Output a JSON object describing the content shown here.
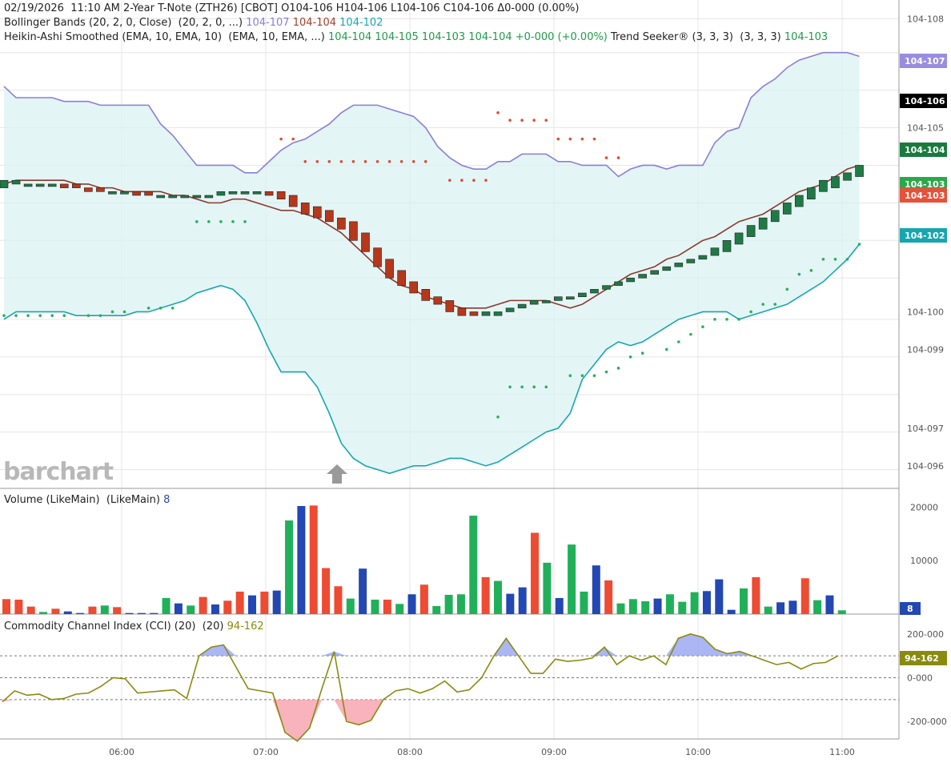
{
  "header": {
    "line1": "02/19/2026  11:10 AM 2-Year T-Note (ZTH26) [CBOT] O104-106 H104-106 L104-106 C104-106 Δ0-000 (0.00%)",
    "bb_label": "Bollinger Bands (20, 2, 0, Close)  (20, 2, 0, ...) ",
    "bb_upper": "104-107",
    "bb_mid": "104-104",
    "bb_lower": "104-102",
    "ha_label": "Heikin-Ashi Smoothed (EMA, 10, EMA, 10)  (EMA, 10, EMA, ...) ",
    "ha_values": "104-104 104-105 104-103 104-104 +0-000 (+0.00%)",
    "ts_label": " Trend Seeker® (3, 3, 3)  (3, 3, 3) ",
    "ts_value": "104-103"
  },
  "volume_panel": {
    "label": "Volume (LikeMain)  (LikeMain) ",
    "value": "8",
    "ticks": [
      "20000",
      "10000"
    ]
  },
  "cci_panel": {
    "label": "Commodity Channel Index (CCI) (20)  (20) ",
    "value": "94-162",
    "ticks": [
      "200-000",
      "0-000",
      "-200-000"
    ]
  },
  "watermark": "barchart",
  "price_ticks": [
    "104-108",
    "104-105",
    "104-100",
    "104-099",
    "104-097",
    "104-096"
  ],
  "price_tags": [
    {
      "label": "104-107",
      "color": "#9a8de0"
    },
    {
      "label": "104-106",
      "color": "#000000"
    },
    {
      "label": "104-104",
      "color": "#1a7a3e"
    },
    {
      "label": "104-103",
      "color": "#2aa84a"
    },
    {
      "label": "104-103",
      "color": "#e8503a"
    },
    {
      "label": "104-102",
      "color": "#17a6b0"
    }
  ],
  "chart_data": {
    "type": "line",
    "x_labels": [
      "06:00",
      "07:00",
      "08:00",
      "09:00",
      "10:00",
      "11:00"
    ],
    "price_panel": {
      "unit": "price (decimal approximations of 104-xxx quotes)",
      "ylim": [
        104.0955,
        104.1085
      ],
      "bb_upper": [
        104.1062,
        104.1059,
        104.1059,
        104.1059,
        104.1059,
        104.1058,
        104.1058,
        104.1058,
        104.1057,
        104.1057,
        104.1057,
        104.1057,
        104.1057,
        104.1052,
        104.1049,
        104.1045,
        104.1041,
        104.1041,
        104.1041,
        104.1041,
        104.1039,
        104.1039,
        104.1042,
        104.1045,
        104.1047,
        104.1048,
        104.105,
        104.1052,
        104.1055,
        104.1057,
        104.1057,
        104.1057,
        104.1056,
        104.1055,
        104.1054,
        104.1051,
        104.1046,
        104.1043,
        104.1041,
        104.104,
        104.104,
        104.1042,
        104.1042,
        104.1044,
        104.1044,
        104.1044,
        104.1042,
        104.1042,
        104.1041,
        104.1041,
        104.1041,
        104.1038,
        104.104,
        104.1041,
        104.1041,
        104.104,
        104.1041,
        104.1041,
        104.1041,
        104.1047,
        104.105,
        104.1051,
        104.1059,
        104.1062,
        104.1064,
        104.1067,
        104.1069,
        104.107,
        104.1071,
        104.1071,
        104.1071,
        104.107
      ],
      "bb_mid": [
        104.1036,
        104.1037,
        104.1037,
        104.1037,
        104.1037,
        104.1037,
        104.1036,
        104.1036,
        104.1035,
        104.1035,
        104.1034,
        104.1034,
        104.1034,
        104.1034,
        104.1033,
        104.1033,
        104.1032,
        104.1031,
        104.1031,
        104.1032,
        104.1032,
        104.1031,
        104.103,
        104.1029,
        104.1029,
        104.1028,
        104.1027,
        104.1025,
        104.1023,
        104.102,
        104.1017,
        104.1014,
        104.1011,
        104.1009,
        104.1008,
        104.1006,
        104.1005,
        104.1004,
        104.1003,
        104.1003,
        104.1003,
        104.1004,
        104.1005,
        104.1005,
        104.1005,
        104.1005,
        104.1004,
        104.1003,
        104.1004,
        104.1006,
        104.1008,
        104.101,
        104.1012,
        104.1013,
        104.1014,
        104.1016,
        104.1017,
        104.1019,
        104.1021,
        104.1022,
        104.1024,
        104.1026,
        104.1027,
        104.1028,
        104.103,
        104.1032,
        104.1034,
        104.1035,
        104.1036,
        104.1038,
        104.104,
        104.1041
      ],
      "bb_lower": [
        104.1,
        104.1002,
        104.1002,
        104.1002,
        104.1002,
        104.1002,
        104.1001,
        104.1001,
        104.1001,
        104.1001,
        104.1001,
        104.1002,
        104.1002,
        104.1003,
        104.1004,
        104.1005,
        104.1007,
        104.1008,
        104.1009,
        104.1008,
        104.1005,
        104.0999,
        104.0992,
        104.0986,
        104.0986,
        104.0986,
        104.0982,
        104.0975,
        104.0967,
        104.0963,
        104.0961,
        104.096,
        104.0959,
        104.096,
        104.0961,
        104.0961,
        104.0962,
        104.0963,
        104.0963,
        104.0962,
        104.0961,
        104.0962,
        104.0964,
        104.0966,
        104.0968,
        104.097,
        104.0971,
        104.0975,
        104.0984,
        104.0988,
        104.0992,
        104.0994,
        104.0993,
        104.0994,
        104.0996,
        104.0998,
        104.1,
        104.1001,
        104.1002,
        104.1002,
        104.1002,
        104.1,
        104.1001,
        104.1002,
        104.1003,
        104.1004,
        104.1006,
        104.1008,
        104.101,
        104.1013,
        104.1016,
        104.102
      ],
      "ha_candles": [
        {
          "o": 104.1035,
          "c": 104.1037
        },
        {
          "o": 104.1036,
          "c": 104.1037
        },
        {
          "o": 104.1036,
          "c": 104.1036
        },
        {
          "o": 104.1036,
          "c": 104.1036
        },
        {
          "o": 104.1036,
          "c": 104.1036
        },
        {
          "o": 104.1036,
          "c": 104.1035
        },
        {
          "o": 104.1036,
          "c": 104.1035
        },
        {
          "o": 104.1035,
          "c": 104.1034
        },
        {
          "o": 104.1035,
          "c": 104.1034
        },
        {
          "o": 104.1034,
          "c": 104.1034
        },
        {
          "o": 104.1034,
          "c": 104.1034
        },
        {
          "o": 104.1034,
          "c": 104.1033
        },
        {
          "o": 104.1034,
          "c": 104.1033
        },
        {
          "o": 104.1033,
          "c": 104.1033
        },
        {
          "o": 104.1033,
          "c": 104.1033
        },
        {
          "o": 104.1033,
          "c": 104.1033
        },
        {
          "o": 104.1033,
          "c": 104.1033
        },
        {
          "o": 104.1033,
          "c": 104.1033
        },
        {
          "o": 104.1033,
          "c": 104.1034
        },
        {
          "o": 104.1034,
          "c": 104.1034
        },
        {
          "o": 104.1034,
          "c": 104.1034
        },
        {
          "o": 104.1034,
          "c": 104.1034
        },
        {
          "o": 104.1034,
          "c": 104.1033
        },
        {
          "o": 104.1034,
          "c": 104.1032
        },
        {
          "o": 104.1033,
          "c": 104.103
        },
        {
          "o": 104.1031,
          "c": 104.1028
        },
        {
          "o": 104.103,
          "c": 104.1027
        },
        {
          "o": 104.1029,
          "c": 104.1026
        },
        {
          "o": 104.1027,
          "c": 104.1024
        },
        {
          "o": 104.1026,
          "c": 104.1021
        },
        {
          "o": 104.1023,
          "c": 104.1018
        },
        {
          "o": 104.1019,
          "c": 104.1014
        },
        {
          "o": 104.1016,
          "c": 104.1011
        },
        {
          "o": 104.1013,
          "c": 104.1009
        },
        {
          "o": 104.101,
          "c": 104.1007
        },
        {
          "o": 104.1008,
          "c": 104.1005
        },
        {
          "o": 104.1006,
          "c": 104.1004
        },
        {
          "o": 104.1005,
          "c": 104.1002
        },
        {
          "o": 104.1003,
          "c": 104.1001
        },
        {
          "o": 104.1002,
          "c": 104.1001
        },
        {
          "o": 104.1001,
          "c": 104.1002
        },
        {
          "o": 104.1001,
          "c": 104.1002
        },
        {
          "o": 104.1002,
          "c": 104.1003
        },
        {
          "o": 104.1003,
          "c": 104.1004
        },
        {
          "o": 104.1004,
          "c": 104.1005
        },
        {
          "o": 104.1005,
          "c": 104.1005
        },
        {
          "o": 104.1005,
          "c": 104.1006
        },
        {
          "o": 104.1006,
          "c": 104.1006
        },
        {
          "o": 104.1006,
          "c": 104.1007
        },
        {
          "o": 104.1007,
          "c": 104.1008
        },
        {
          "o": 104.1008,
          "c": 104.1009
        },
        {
          "o": 104.1009,
          "c": 104.101
        },
        {
          "o": 104.101,
          "c": 104.1011
        },
        {
          "o": 104.1011,
          "c": 104.1012
        },
        {
          "o": 104.1012,
          "c": 104.1013
        },
        {
          "o": 104.1013,
          "c": 104.1014
        },
        {
          "o": 104.1014,
          "c": 104.1015
        },
        {
          "o": 104.1015,
          "c": 104.1016
        },
        {
          "o": 104.1016,
          "c": 104.1017
        },
        {
          "o": 104.1017,
          "c": 104.1019
        },
        {
          "o": 104.1018,
          "c": 104.1021
        },
        {
          "o": 104.102,
          "c": 104.1023
        },
        {
          "o": 104.1022,
          "c": 104.1025
        },
        {
          "o": 104.1024,
          "c": 104.1027
        },
        {
          "o": 104.1026,
          "c": 104.1029
        },
        {
          "o": 104.1028,
          "c": 104.1031
        },
        {
          "o": 104.103,
          "c": 104.1033
        },
        {
          "o": 104.1032,
          "c": 104.1035
        },
        {
          "o": 104.1034,
          "c": 104.1037
        },
        {
          "o": 104.1035,
          "c": 104.1038
        },
        {
          "o": 104.1037,
          "c": 104.1039
        },
        {
          "o": 104.1038,
          "c": 104.1041
        }
      ],
      "trend_seeker_dots": [
        {
          "i": 0,
          "y": 104.1001,
          "s": "g"
        },
        {
          "i": 1,
          "y": 104.1001,
          "s": "g"
        },
        {
          "i": 2,
          "y": 104.1001,
          "s": "g"
        },
        {
          "i": 3,
          "y": 104.1001,
          "s": "g"
        },
        {
          "i": 4,
          "y": 104.1001,
          "s": "g"
        },
        {
          "i": 5,
          "y": 104.1001,
          "s": "g"
        },
        {
          "i": 7,
          "y": 104.1001,
          "s": "g"
        },
        {
          "i": 8,
          "y": 104.1001,
          "s": "g"
        },
        {
          "i": 9,
          "y": 104.1002,
          "s": "g"
        },
        {
          "i": 10,
          "y": 104.1002,
          "s": "g"
        },
        {
          "i": 12,
          "y": 104.1003,
          "s": "g"
        },
        {
          "i": 13,
          "y": 104.1003,
          "s": "g"
        },
        {
          "i": 14,
          "y": 104.1003,
          "s": "g"
        },
        {
          "i": 16,
          "y": 104.1026,
          "s": "g"
        },
        {
          "i": 17,
          "y": 104.1026,
          "s": "g"
        },
        {
          "i": 18,
          "y": 104.1026,
          "s": "g"
        },
        {
          "i": 19,
          "y": 104.1026,
          "s": "g"
        },
        {
          "i": 20,
          "y": 104.1026,
          "s": "g"
        },
        {
          "i": 23,
          "y": 104.1048,
          "s": "r"
        },
        {
          "i": 24,
          "y": 104.1048,
          "s": "r"
        },
        {
          "i": 25,
          "y": 104.1042,
          "s": "r"
        },
        {
          "i": 26,
          "y": 104.1042,
          "s": "r"
        },
        {
          "i": 27,
          "y": 104.1042,
          "s": "r"
        },
        {
          "i": 28,
          "y": 104.1042,
          "s": "r"
        },
        {
          "i": 29,
          "y": 104.1042,
          "s": "r"
        },
        {
          "i": 30,
          "y": 104.1042,
          "s": "r"
        },
        {
          "i": 31,
          "y": 104.1042,
          "s": "r"
        },
        {
          "i": 32,
          "y": 104.1042,
          "s": "r"
        },
        {
          "i": 33,
          "y": 104.1042,
          "s": "r"
        },
        {
          "i": 34,
          "y": 104.1042,
          "s": "r"
        },
        {
          "i": 35,
          "y": 104.1042,
          "s": "r"
        },
        {
          "i": 37,
          "y": 104.1037,
          "s": "r"
        },
        {
          "i": 38,
          "y": 104.1037,
          "s": "r"
        },
        {
          "i": 39,
          "y": 104.1037,
          "s": "r"
        },
        {
          "i": 40,
          "y": 104.1037,
          "s": "r"
        },
        {
          "i": 41,
          "y": 104.1055,
          "s": "r"
        },
        {
          "i": 42,
          "y": 104.1053,
          "s": "r"
        },
        {
          "i": 43,
          "y": 104.1053,
          "s": "r"
        },
        {
          "i": 44,
          "y": 104.1053,
          "s": "r"
        },
        {
          "i": 45,
          "y": 104.1053,
          "s": "r"
        },
        {
          "i": 46,
          "y": 104.1048,
          "s": "r"
        },
        {
          "i": 47,
          "y": 104.1048,
          "s": "r"
        },
        {
          "i": 48,
          "y": 104.1048,
          "s": "r"
        },
        {
          "i": 49,
          "y": 104.1048,
          "s": "r"
        },
        {
          "i": 50,
          "y": 104.1043,
          "s": "r"
        },
        {
          "i": 51,
          "y": 104.1043,
          "s": "r"
        },
        {
          "i": 41,
          "y": 104.0974,
          "s": "g"
        },
        {
          "i": 42,
          "y": 104.0982,
          "s": "g"
        },
        {
          "i": 43,
          "y": 104.0982,
          "s": "g"
        },
        {
          "i": 44,
          "y": 104.0982,
          "s": "g"
        },
        {
          "i": 45,
          "y": 104.0982,
          "s": "g"
        },
        {
          "i": 47,
          "y": 104.0985,
          "s": "g"
        },
        {
          "i": 48,
          "y": 104.0985,
          "s": "g"
        },
        {
          "i": 49,
          "y": 104.0985,
          "s": "g"
        },
        {
          "i": 50,
          "y": 104.0986,
          "s": "g"
        },
        {
          "i": 51,
          "y": 104.0987,
          "s": "g"
        },
        {
          "i": 52,
          "y": 104.099,
          "s": "g"
        },
        {
          "i": 53,
          "y": 104.0991,
          "s": "g"
        },
        {
          "i": 55,
          "y": 104.0992,
          "s": "g"
        },
        {
          "i": 56,
          "y": 104.0994,
          "s": "g"
        },
        {
          "i": 57,
          "y": 104.0996,
          "s": "g"
        },
        {
          "i": 58,
          "y": 104.0998,
          "s": "g"
        },
        {
          "i": 59,
          "y": 104.1,
          "s": "g"
        },
        {
          "i": 60,
          "y": 104.1,
          "s": "g"
        },
        {
          "i": 61,
          "y": 104.1,
          "s": "g"
        },
        {
          "i": 62,
          "y": 104.1002,
          "s": "g"
        },
        {
          "i": 63,
          "y": 104.1004,
          "s": "g"
        },
        {
          "i": 64,
          "y": 104.1004,
          "s": "g"
        },
        {
          "i": 65,
          "y": 104.1008,
          "s": "g"
        },
        {
          "i": 66,
          "y": 104.1012,
          "s": "g"
        },
        {
          "i": 67,
          "y": 104.1013,
          "s": "g"
        },
        {
          "i": 68,
          "y": 104.1016,
          "s": "g"
        },
        {
          "i": 69,
          "y": 104.1016,
          "s": "g"
        },
        {
          "i": 70,
          "y": 104.1016,
          "s": "g"
        },
        {
          "i": 71,
          "y": 104.102,
          "s": "g"
        }
      ]
    },
    "volume_panel": {
      "ylim": [
        0,
        22000
      ],
      "values": [
        2800,
        2700,
        1400,
        400,
        1000,
        500,
        200,
        1400,
        1600,
        1300,
        200,
        200,
        200,
        3000,
        2000,
        1600,
        3200,
        1800,
        2500,
        4200,
        3500,
        4200,
        4400,
        17500,
        20200,
        20300,
        8600,
        5200,
        2900,
        8500,
        2700,
        2700,
        1900,
        3700,
        5500,
        1500,
        3600,
        3700,
        18400,
        6900,
        6200,
        3800,
        5000,
        15200,
        9600,
        3000,
        13000,
        4200,
        9100,
        6300,
        2000,
        2800,
        2400,
        2900,
        3700,
        2300,
        4100,
        4300,
        6500,
        800,
        4800,
        6900,
        1400,
        2200,
        2500,
        6700,
        2600,
        3500,
        700
      ],
      "colors": [
        "r",
        "r",
        "r",
        "g",
        "r",
        "b",
        "b",
        "r",
        "g",
        "r",
        "b",
        "b",
        "b",
        "g",
        "b",
        "g",
        "r",
        "b",
        "r",
        "r",
        "b",
        "r",
        "b",
        "g",
        "b",
        "r",
        "r",
        "r",
        "g",
        "b",
        "g",
        "r",
        "g",
        "b",
        "r",
        "g",
        "g",
        "g",
        "g",
        "r",
        "g",
        "b",
        "b",
        "r",
        "g",
        "b",
        "g",
        "g",
        "b",
        "r",
        "g",
        "g",
        "g",
        "b",
        "g",
        "g",
        "g",
        "b",
        "b",
        "b",
        "g",
        "r",
        "g",
        "b",
        "b",
        "r",
        "g",
        "b",
        "g"
      ]
    },
    "cci_panel": {
      "ylim": [
        -280,
        280
      ],
      "values": [
        -110,
        -60,
        -80,
        -75,
        -100,
        -95,
        -75,
        -70,
        -40,
        0,
        -5,
        -70,
        -65,
        -60,
        -55,
        -95,
        100,
        140,
        150,
        50,
        -50,
        -60,
        -70,
        -250,
        -290,
        -230,
        -50,
        120,
        -200,
        -215,
        -195,
        -100,
        -60,
        -50,
        -70,
        -50,
        -15,
        -65,
        -55,
        0,
        100,
        180,
        100,
        20,
        20,
        85,
        75,
        80,
        90,
        140,
        60,
        100,
        80,
        100,
        60,
        180,
        200,
        185,
        130,
        110,
        120,
        100,
        80,
        60,
        70,
        40,
        65,
        70,
        100
      ]
    }
  }
}
